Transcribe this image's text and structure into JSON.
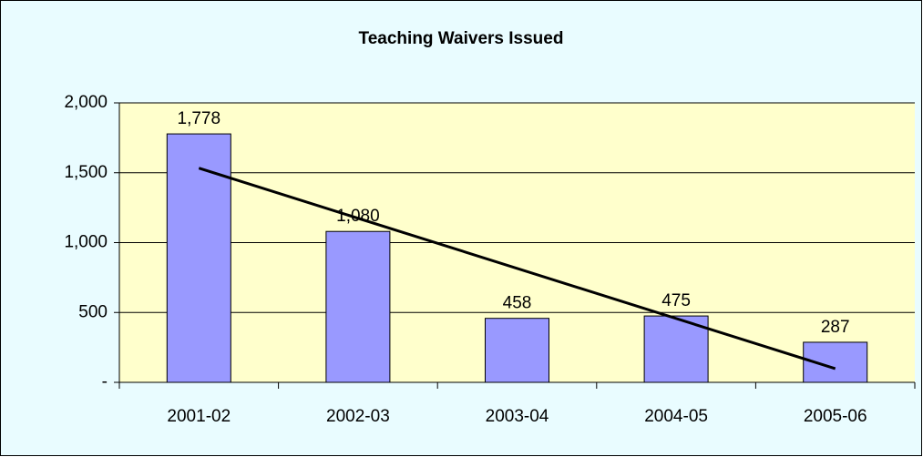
{
  "chart_data": {
    "type": "bar",
    "title": "Teaching Waivers Issued",
    "categories": [
      "2001-02",
      "2002-03",
      "2003-04",
      "2004-05",
      "2005-06"
    ],
    "values": [
      1778,
      1080,
      458,
      475,
      287
    ],
    "value_labels": [
      "1,778",
      "1,080",
      "458",
      "475",
      "287"
    ],
    "color": "#9999ff",
    "ylim": [
      0,
      2000
    ],
    "yticks": [
      {
        "value": 0,
        "label": "-"
      },
      500,
      {
        "value": 1000,
        "label": "1,000"
      },
      {
        "value": 1500,
        "label": "1,500"
      },
      {
        "value": 2000,
        "label": "2,000"
      }
    ],
    "grid": true,
    "trendline": true
  }
}
